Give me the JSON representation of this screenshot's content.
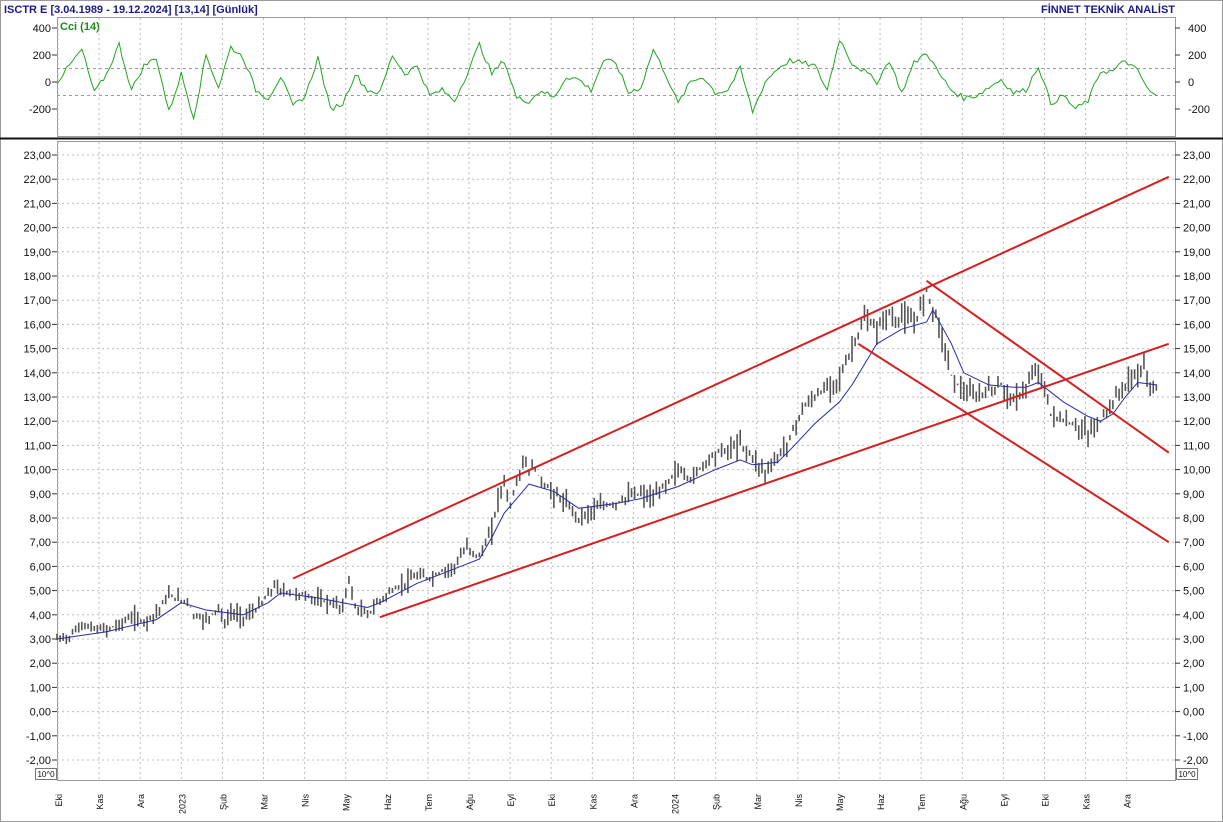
{
  "header": {
    "symbol_info": "ISCTR E  [3.04.1989 - 19.12.2024]  [13,14]  [Günlük]",
    "brand": "FİNNET TEKNİK ANALİST"
  },
  "indicator": {
    "label": "Cci (14)",
    "yticks": [
      "400",
      "200",
      "0",
      "-200"
    ],
    "ref_levels": [
      100,
      -100
    ],
    "line_color": "#22a522"
  },
  "price_panel": {
    "yticks": [
      "23,00",
      "22,00",
      "21,00",
      "20,00",
      "19,00",
      "18,00",
      "17,00",
      "16,00",
      "15,00",
      "14,00",
      "13,00",
      "12,00",
      "11,00",
      "10,00",
      "9,00",
      "8,00",
      "7,00",
      "6,00",
      "5,00",
      "4,00",
      "3,00",
      "2,00",
      "1,00",
      "0,00",
      "-1,00",
      "-2,00"
    ],
    "scale_badge": "10^0"
  },
  "x_axis": {
    "labels": [
      "Eki",
      "Kas",
      "Ara",
      "2023",
      "Şub",
      "Mar",
      "Nis",
      "May",
      "Haz",
      "Tem",
      "Ağu",
      "Eyl",
      "Eki",
      "Kas",
      "Ara",
      "2024",
      "Şub",
      "Mar",
      "Nis",
      "May",
      "Haz",
      "Tem",
      "Ağu",
      "Eyl",
      "Eki",
      "Kas",
      "Ara"
    ]
  },
  "colors": {
    "price_bars": "#555555",
    "moving_average": "#2a2aa8",
    "trendlines": "#d42020",
    "grid": "#bdbdbd"
  },
  "chart_data": {
    "type": "line",
    "title": "ISCTR E",
    "y_range": [
      -2,
      23
    ],
    "cci_range": [
      -300,
      400
    ],
    "series": [
      {
        "name": "",
        "kind": "price-bars",
        "points": [
          [
            0,
            3.0
          ],
          [
            1,
            3.1
          ],
          [
            2,
            3.6
          ],
          [
            3,
            3.4
          ],
          [
            4,
            3.4
          ],
          [
            5,
            3.6
          ],
          [
            6,
            3.9
          ],
          [
            7,
            3.7
          ],
          [
            8,
            4.1
          ],
          [
            9,
            4.8
          ],
          [
            10,
            4.6
          ],
          [
            10.5,
            4.6
          ],
          [
            11,
            4.0
          ],
          [
            12,
            3.8
          ],
          [
            13,
            4.3
          ],
          [
            13.5,
            3.6
          ],
          [
            14,
            4.1
          ],
          [
            15,
            3.9
          ],
          [
            16,
            4.2
          ],
          [
            17,
            4.8
          ],
          [
            17.5,
            5.2
          ],
          [
            18,
            5.0
          ],
          [
            19,
            4.9
          ],
          [
            20,
            4.8
          ],
          [
            21,
            4.6
          ],
          [
            22,
            4.5
          ],
          [
            23,
            4.3
          ],
          [
            23.5,
            5.5
          ],
          [
            24,
            4.3
          ],
          [
            25,
            4.0
          ],
          [
            26,
            4.6
          ],
          [
            27,
            5.0
          ],
          [
            28,
            5.3
          ],
          [
            29,
            5.6
          ],
          [
            30,
            5.5
          ],
          [
            31,
            5.8
          ],
          [
            32,
            6.0
          ],
          [
            33,
            6.8
          ],
          [
            34,
            6.4
          ],
          [
            35,
            7.5
          ],
          [
            35.5,
            8.8
          ],
          [
            36,
            9.5
          ],
          [
            36.5,
            8.5
          ],
          [
            37,
            9.5
          ],
          [
            37.5,
            10.3
          ],
          [
            38,
            10.0
          ],
          [
            38.5,
            10.0
          ],
          [
            39,
            9.5
          ],
          [
            40,
            9.0
          ],
          [
            41,
            8.6
          ],
          [
            42,
            8.0
          ],
          [
            43,
            8.3
          ],
          [
            44,
            8.5
          ],
          [
            45,
            8.6
          ],
          [
            46,
            8.9
          ],
          [
            47,
            9.0
          ],
          [
            48,
            8.8
          ],
          [
            49,
            9.4
          ],
          [
            50,
            10.0
          ],
          [
            51,
            9.6
          ],
          [
            52,
            10.2
          ],
          [
            53,
            10.7
          ],
          [
            54,
            10.8
          ],
          [
            55,
            11.1
          ],
          [
            56,
            10.5
          ],
          [
            57,
            9.9
          ],
          [
            58,
            10.5
          ],
          [
            59,
            11.3
          ],
          [
            60,
            12.5
          ],
          [
            61,
            13.0
          ],
          [
            62,
            13.4
          ],
          [
            63,
            13.8
          ],
          [
            64,
            15.0
          ],
          [
            65,
            16.2
          ],
          [
            66,
            15.8
          ],
          [
            67,
            16.5
          ],
          [
            67.5,
            16.0
          ],
          [
            68,
            16.4
          ],
          [
            69,
            16.0
          ],
          [
            70,
            17.4
          ],
          [
            71,
            16.0
          ],
          [
            72,
            13.9
          ],
          [
            73,
            13.2
          ],
          [
            74,
            13.0
          ],
          [
            75,
            13.3
          ],
          [
            76,
            13.5
          ],
          [
            77,
            12.8
          ],
          [
            78,
            13.4
          ],
          [
            79,
            14.2
          ],
          [
            80,
            12.3
          ],
          [
            81,
            12.0
          ],
          [
            82,
            11.8
          ],
          [
            83,
            11.5
          ],
          [
            84,
            12.0
          ],
          [
            85,
            12.8
          ],
          [
            86,
            13.5
          ],
          [
            87,
            14.0
          ],
          [
            87.5,
            14.2
          ],
          [
            88,
            13.5
          ],
          [
            88.5,
            13.3
          ]
        ]
      },
      {
        "name": "",
        "kind": "moving-average",
        "points": [
          [
            0,
            3.0
          ],
          [
            4,
            3.3
          ],
          [
            8,
            3.8
          ],
          [
            10,
            4.5
          ],
          [
            12,
            4.2
          ],
          [
            15,
            4.0
          ],
          [
            17,
            4.5
          ],
          [
            18,
            4.9
          ],
          [
            21,
            4.7
          ],
          [
            23,
            4.5
          ],
          [
            25,
            4.3
          ],
          [
            26,
            4.5
          ],
          [
            29,
            5.3
          ],
          [
            32,
            5.9
          ],
          [
            34,
            6.3
          ],
          [
            35,
            7.2
          ],
          [
            36,
            8.2
          ],
          [
            38,
            9.4
          ],
          [
            40,
            9.1
          ],
          [
            42,
            8.4
          ],
          [
            45,
            8.6
          ],
          [
            47,
            8.8
          ],
          [
            50,
            9.3
          ],
          [
            53,
            10.0
          ],
          [
            55,
            10.4
          ],
          [
            56,
            10.2
          ],
          [
            58,
            10.3
          ],
          [
            59,
            10.8
          ],
          [
            61,
            11.9
          ],
          [
            63,
            12.8
          ],
          [
            64,
            13.5
          ],
          [
            66,
            15.2
          ],
          [
            68,
            15.8
          ],
          [
            70,
            16.1
          ],
          [
            70.5,
            16.6
          ],
          [
            72,
            15.2
          ],
          [
            73,
            14.0
          ],
          [
            75,
            13.5
          ],
          [
            77,
            13.4
          ],
          [
            78,
            13.4
          ],
          [
            79,
            13.6
          ],
          [
            81,
            12.8
          ],
          [
            83,
            12.2
          ],
          [
            84,
            12.0
          ],
          [
            85,
            12.3
          ],
          [
            86,
            13.0
          ],
          [
            87,
            13.6
          ],
          [
            88.5,
            13.5
          ]
        ]
      },
      {
        "name": "",
        "kind": "cci",
        "points": [
          [
            0,
            0
          ],
          [
            1,
            120
          ],
          [
            2,
            240
          ],
          [
            3,
            -80
          ],
          [
            4,
            60
          ],
          [
            5,
            280
          ],
          [
            6,
            -60
          ],
          [
            7,
            120
          ],
          [
            8,
            180
          ],
          [
            9,
            -220
          ],
          [
            10,
            60
          ],
          [
            11,
            -260
          ],
          [
            12,
            200
          ],
          [
            13,
            -40
          ],
          [
            14,
            260
          ],
          [
            15,
            180
          ],
          [
            16,
            -60
          ],
          [
            17,
            -120
          ],
          [
            18,
            40
          ],
          [
            19,
            -180
          ],
          [
            20,
            -100
          ],
          [
            21,
            180
          ],
          [
            22,
            -200
          ],
          [
            23,
            -160
          ],
          [
            24,
            60
          ],
          [
            25,
            -60
          ],
          [
            26,
            -80
          ],
          [
            27,
            200
          ],
          [
            28,
            60
          ],
          [
            29,
            120
          ],
          [
            30,
            -100
          ],
          [
            31,
            -60
          ],
          [
            32,
            -140
          ],
          [
            33,
            60
          ],
          [
            34,
            280
          ],
          [
            35,
            60
          ],
          [
            36,
            160
          ],
          [
            37,
            -120
          ],
          [
            38,
            -140
          ],
          [
            39,
            -60
          ],
          [
            40,
            -120
          ],
          [
            41,
            40
          ],
          [
            42,
            20
          ],
          [
            43,
            -60
          ],
          [
            44,
            160
          ],
          [
            45,
            140
          ],
          [
            46,
            -80
          ],
          [
            47,
            -40
          ],
          [
            48,
            240
          ],
          [
            49,
            60
          ],
          [
            50,
            -160
          ],
          [
            51,
            0
          ],
          [
            52,
            40
          ],
          [
            53,
            -80
          ],
          [
            54,
            -60
          ],
          [
            55,
            100
          ],
          [
            56,
            -220
          ],
          [
            57,
            0
          ],
          [
            58,
            100
          ],
          [
            59,
            160
          ],
          [
            60,
            140
          ],
          [
            61,
            120
          ],
          [
            62,
            -60
          ],
          [
            63,
            320
          ],
          [
            64,
            140
          ],
          [
            65,
            80
          ],
          [
            66,
            0
          ],
          [
            67,
            160
          ],
          [
            68,
            -80
          ],
          [
            69,
            140
          ],
          [
            70,
            220
          ],
          [
            71,
            60
          ],
          [
            72,
            -60
          ],
          [
            73,
            -120
          ],
          [
            74,
            -100
          ],
          [
            75,
            -40
          ],
          [
            76,
            20
          ],
          [
            77,
            -80
          ],
          [
            78,
            -60
          ],
          [
            79,
            120
          ],
          [
            80,
            -160
          ],
          [
            81,
            -100
          ],
          [
            82,
            -200
          ],
          [
            83,
            -140
          ],
          [
            84,
            80
          ],
          [
            85,
            80
          ],
          [
            86,
            160
          ],
          [
            87,
            80
          ],
          [
            88,
            -80
          ],
          [
            88.5,
            -100
          ]
        ]
      }
    ],
    "trendlines": [
      [
        [
          19,
          5.5
        ],
        [
          89.5,
          22.1
        ]
      ],
      [
        [
          26,
          3.9
        ],
        [
          89.5,
          15.2
        ]
      ],
      [
        [
          70,
          17.8
        ],
        [
          89.5,
          10.7
        ]
      ],
      [
        [
          64.5,
          15.2
        ],
        [
          89.5,
          7.0
        ]
      ]
    ]
  }
}
